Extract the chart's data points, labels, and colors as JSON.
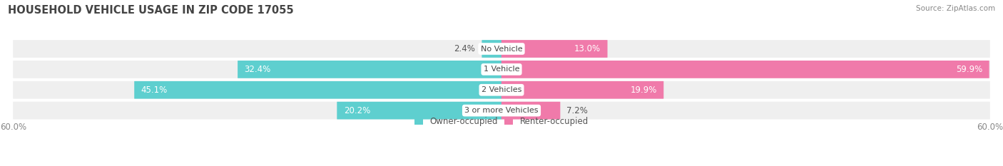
{
  "title": "HOUSEHOLD VEHICLE USAGE IN ZIP CODE 17055",
  "source": "Source: ZipAtlas.com",
  "categories": [
    "No Vehicle",
    "1 Vehicle",
    "2 Vehicles",
    "3 or more Vehicles"
  ],
  "owner_values": [
    2.4,
    32.4,
    45.1,
    20.2
  ],
  "renter_values": [
    13.0,
    59.9,
    19.9,
    7.2
  ],
  "owner_color": "#5ecfcf",
  "renter_color": "#f07aaa",
  "bar_bg_color": "#efefef",
  "axis_max": 60.0,
  "legend_owner": "Owner-occupied",
  "legend_renter": "Renter-occupied",
  "x_tick_left": "60.0%",
  "x_tick_right": "60.0%",
  "title_fontsize": 10.5,
  "label_fontsize": 8.5,
  "cat_fontsize": 8.0,
  "source_fontsize": 7.5,
  "bar_height": 0.62,
  "bar_gap": 0.15
}
